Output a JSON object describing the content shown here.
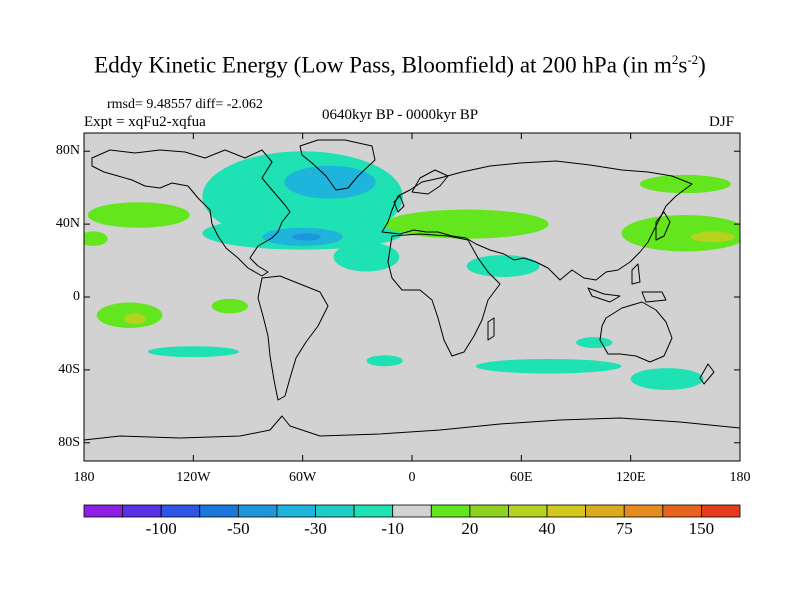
{
  "title": {
    "main": "Eddy Kinetic Energy (Low Pass, Bloomfield) at 200 hPa (in m",
    "sup1": "2",
    "mid": "s",
    "sup2": "-2",
    "end": ")"
  },
  "stats": "rmsd= 9.48557 diff= -2.062",
  "expt": "Expt = xqFu2-xqfua",
  "period": "0640kyr BP - 0000kyr BP",
  "season": "DJF",
  "lat_ticks": [
    {
      "label": "80N",
      "lat": 80
    },
    {
      "label": "40N",
      "lat": 40
    },
    {
      "label": "0",
      "lat": 0
    },
    {
      "label": "40S",
      "lat": -40
    },
    {
      "label": "80S",
      "lat": -80
    }
  ],
  "lon_ticks": [
    {
      "label": "180",
      "lon": -180
    },
    {
      "label": "120W",
      "lon": -120
    },
    {
      "label": "60W",
      "lon": -60
    },
    {
      "label": "0",
      "lon": 0
    },
    {
      "label": "60E",
      "lon": 60
    },
    {
      "label": "120E",
      "lon": 120
    },
    {
      "label": "180",
      "lon": 180
    }
  ],
  "colorbar": {
    "colors": [
      "#8c1ee6",
      "#5a32e6",
      "#2d55e6",
      "#1a78dc",
      "#1e96dc",
      "#1eb4dc",
      "#1ecdc8",
      "#1ee1b4",
      "#d2d2d2",
      "#64e61e",
      "#8cd21e",
      "#b4d21e",
      "#d2c81e",
      "#dcaa1e",
      "#e68c1e",
      "#e6641e",
      "#e63c1e"
    ],
    "labels": [
      {
        "text": "-100",
        "after": 2
      },
      {
        "text": "-50",
        "after": 4
      },
      {
        "text": "-30",
        "after": 6
      },
      {
        "text": "-10",
        "after": 8
      },
      {
        "text": "20",
        "after": 10
      },
      {
        "text": "40",
        "after": 12
      },
      {
        "text": "75",
        "after": 14
      },
      {
        "text": "150",
        "after": 16
      }
    ]
  },
  "map": {
    "background_color": "#d2d2d2",
    "anomaly_regions": [
      {
        "name": "north-atlantic-negative",
        "level": "-10",
        "color": "#1ee1b4",
        "lon": -60,
        "lat": 55,
        "rx_deg": 55,
        "ry_deg": 25
      },
      {
        "name": "greenland-core",
        "level": "-30",
        "color": "#1eb4dc",
        "lon": -45,
        "lat": 63,
        "rx_deg": 25,
        "ry_deg": 9
      },
      {
        "name": "us-jet-negative",
        "level": "-10",
        "color": "#1ee1b4",
        "lon": -60,
        "lat": 35,
        "rx_deg": 55,
        "ry_deg": 9
      },
      {
        "name": "us-jet-core",
        "level": "-30",
        "color": "#1eb4dc",
        "lon": -60,
        "lat": 33,
        "rx_deg": 22,
        "ry_deg": 5
      },
      {
        "name": "us-jet-center",
        "level": "-50",
        "color": "#1e96dc",
        "lon": -58,
        "lat": 33,
        "rx_deg": 8,
        "ry_deg": 2
      },
      {
        "name": "mid-atlantic-lobe",
        "level": "-10",
        "color": "#1ee1b4",
        "lon": -25,
        "lat": 22,
        "rx_deg": 18,
        "ry_deg": 8
      },
      {
        "name": "europe-positive",
        "level": "20",
        "color": "#64e61e",
        "lon": 30,
        "lat": 40,
        "rx_deg": 45,
        "ry_deg": 8
      },
      {
        "name": "nw-pacific-positive",
        "level": "20",
        "color": "#64e61e",
        "lon": 150,
        "lat": 35,
        "rx_deg": 35,
        "ry_deg": 10
      },
      {
        "name": "nw-pacific-core",
        "level": "40",
        "color": "#b4d21e",
        "lon": 165,
        "lat": 33,
        "rx_deg": 12,
        "ry_deg": 3
      },
      {
        "name": "siberia-positive",
        "level": "20",
        "color": "#64e61e",
        "lon": 150,
        "lat": 62,
        "rx_deg": 25,
        "ry_deg": 5
      },
      {
        "name": "ne-pacific-positive",
        "level": "20",
        "color": "#64e61e",
        "lon": -150,
        "lat": 45,
        "rx_deg": 28,
        "ry_deg": 7
      },
      {
        "name": "dateline-east-positive",
        "level": "20",
        "color": "#64e61e",
        "lon": -175,
        "lat": 32,
        "rx_deg": 8,
        "ry_deg": 4
      },
      {
        "name": "tropical-pacific-positive",
        "level": "20",
        "color": "#64e61e",
        "lon": -155,
        "lat": -10,
        "rx_deg": 18,
        "ry_deg": 7
      },
      {
        "name": "tropical-pacific-core",
        "level": "40",
        "color": "#b4d21e",
        "lon": -152,
        "lat": -12,
        "rx_deg": 6,
        "ry_deg": 3
      },
      {
        "name": "equatorial-pacific-positive",
        "level": "20",
        "color": "#64e61e",
        "lon": -100,
        "lat": -5,
        "rx_deg": 10,
        "ry_deg": 4
      },
      {
        "name": "sw-pacific-negative",
        "level": "-10",
        "color": "#1ee1b4",
        "lon": -120,
        "lat": -30,
        "rx_deg": 25,
        "ry_deg": 3
      },
      {
        "name": "south-atlantic-negative",
        "level": "-10",
        "color": "#1ee1b4",
        "lon": -15,
        "lat": -35,
        "rx_deg": 10,
        "ry_deg": 3
      },
      {
        "name": "south-indian-negative",
        "level": "-10",
        "color": "#1ee1b4",
        "lon": 75,
        "lat": -38,
        "rx_deg": 40,
        "ry_deg": 4
      },
      {
        "name": "australia-negative",
        "level": "-10",
        "color": "#1ee1b4",
        "lon": 140,
        "lat": -45,
        "rx_deg": 20,
        "ry_deg": 6
      },
      {
        "name": "indian-ocean-negative",
        "level": "-10",
        "color": "#1ee1b4",
        "lon": 100,
        "lat": -25,
        "rx_deg": 10,
        "ry_deg": 3
      },
      {
        "name": "arabia-negative",
        "level": "-10",
        "color": "#1ee1b4",
        "lon": 50,
        "lat": 17,
        "rx_deg": 20,
        "ry_deg": 6
      }
    ]
  }
}
